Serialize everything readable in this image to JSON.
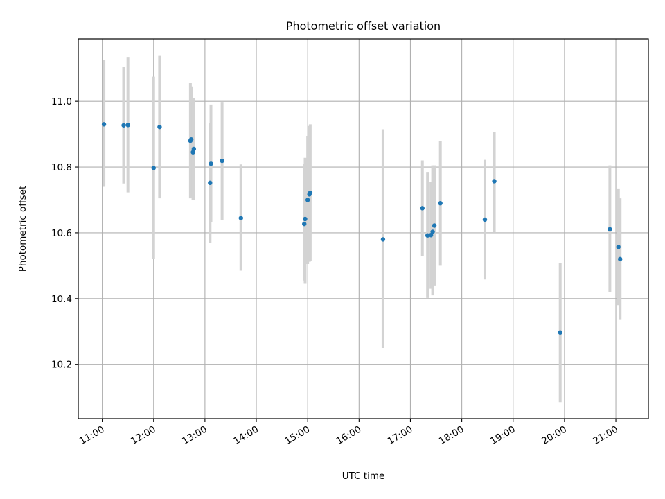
{
  "chart_data": {
    "type": "scatter",
    "title": "Photometric offset variation",
    "xlabel": "UTC time",
    "ylabel": "Photometric offset",
    "x_axis_type": "time",
    "xlim": [
      "10:32",
      "21:38"
    ],
    "ylim": [
      10.035,
      11.19
    ],
    "x_ticks": [
      "11:00",
      "12:00",
      "13:00",
      "14:00",
      "15:00",
      "16:00",
      "17:00",
      "18:00",
      "19:00",
      "20:00",
      "21:00"
    ],
    "y_ticks": [
      10.2,
      10.4,
      10.6,
      10.8,
      11.0
    ],
    "y_tick_labels": [
      "10.2",
      "10.4",
      "10.6",
      "10.8",
      "11.0"
    ],
    "grid": true,
    "legend": "none",
    "colors": {
      "point": "#1f77b4",
      "errorbar": "#d3d3d3",
      "grid": "#b0b0b0"
    },
    "points": [
      {
        "x": "11:02",
        "y": 10.93,
        "ylow": 10.74,
        "yhigh": 11.125
      },
      {
        "x": "11:25",
        "y": 10.927,
        "ylow": 10.75,
        "yhigh": 11.105
      },
      {
        "x": "11:30",
        "y": 10.928,
        "ylow": 10.723,
        "yhigh": 11.135
      },
      {
        "x": "12:00",
        "y": 10.797,
        "ylow": 10.52,
        "yhigh": 11.075
      },
      {
        "x": "12:07",
        "y": 10.922,
        "ylow": 10.705,
        "yhigh": 11.138
      },
      {
        "x": "12:43",
        "y": 10.88,
        "ylow": 10.705,
        "yhigh": 11.055
      },
      {
        "x": "12:44",
        "y": 10.884,
        "ylow": 10.71,
        "yhigh": 11.045
      },
      {
        "x": "12:46",
        "y": 10.845,
        "ylow": 10.7,
        "yhigh": 10.998
      },
      {
        "x": "12:47",
        "y": 10.855,
        "ylow": 10.7,
        "yhigh": 11.01
      },
      {
        "x": "13:06",
        "y": 10.752,
        "ylow": 10.57,
        "yhigh": 10.935
      },
      {
        "x": "13:07",
        "y": 10.81,
        "ylow": 10.632,
        "yhigh": 10.99
      },
      {
        "x": "13:20",
        "y": 10.819,
        "ylow": 10.64,
        "yhigh": 10.998
      },
      {
        "x": "13:42",
        "y": 10.645,
        "ylow": 10.485,
        "yhigh": 10.808
      },
      {
        "x": "14:56",
        "y": 10.627,
        "ylow": 10.455,
        "yhigh": 10.81
      },
      {
        "x": "14:57",
        "y": 10.642,
        "ylow": 10.445,
        "yhigh": 10.828
      },
      {
        "x": "15:00",
        "y": 10.7,
        "ylow": 10.505,
        "yhigh": 10.895
      },
      {
        "x": "15:02",
        "y": 10.717,
        "ylow": 10.512,
        "yhigh": 10.925
      },
      {
        "x": "15:03",
        "y": 10.722,
        "ylow": 10.515,
        "yhigh": 10.93
      },
      {
        "x": "16:28",
        "y": 10.58,
        "ylow": 10.25,
        "yhigh": 10.915
      },
      {
        "x": "17:14",
        "y": 10.675,
        "ylow": 10.53,
        "yhigh": 10.82
      },
      {
        "x": "17:20",
        "y": 10.592,
        "ylow": 10.402,
        "yhigh": 10.785
      },
      {
        "x": "17:24",
        "y": 10.593,
        "ylow": 10.43,
        "yhigh": 10.755
      },
      {
        "x": "17:26",
        "y": 10.603,
        "ylow": 10.41,
        "yhigh": 10.805
      },
      {
        "x": "17:28",
        "y": 10.622,
        "ylow": 10.44,
        "yhigh": 10.805
      },
      {
        "x": "17:35",
        "y": 10.69,
        "ylow": 10.5,
        "yhigh": 10.878
      },
      {
        "x": "18:27",
        "y": 10.64,
        "ylow": 10.458,
        "yhigh": 10.822
      },
      {
        "x": "18:38",
        "y": 10.757,
        "ylow": 10.6,
        "yhigh": 10.907
      },
      {
        "x": "19:55",
        "y": 10.297,
        "ylow": 10.085,
        "yhigh": 10.508
      },
      {
        "x": "20:53",
        "y": 10.611,
        "ylow": 10.42,
        "yhigh": 10.805
      },
      {
        "x": "21:03",
        "y": 10.557,
        "ylow": 10.38,
        "yhigh": 10.735
      },
      {
        "x": "21:05",
        "y": 10.52,
        "ylow": 10.335,
        "yhigh": 10.705
      }
    ]
  }
}
